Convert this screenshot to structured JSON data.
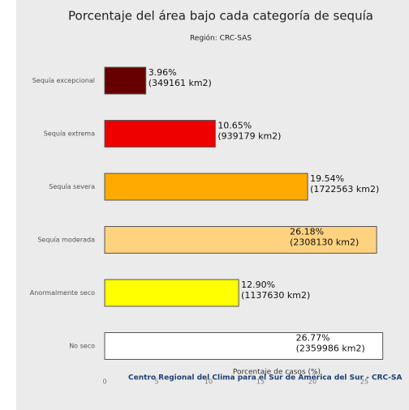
{
  "chart_data": {
    "type": "barh",
    "title": "Porcentaje del área bajo cada categoría de sequía",
    "subtitle": "Región: CRC-SAS",
    "x_label": "Porcentaje de casos (%)",
    "footer": "Centro Regional del Clima para el Sur de América del Sur - CRC-SA",
    "categories": [
      "Sequía excepcional",
      "Sequía extrema",
      "Sequía severa",
      "Sequía moderada",
      "Anormalmente seco",
      "No seco"
    ],
    "values": [
      3.96,
      10.65,
      19.54,
      26.18,
      12.9,
      26.77
    ],
    "value_labels": [
      "3.96%",
      "10.65%",
      "19.54%",
      "26.18%",
      "12.90%",
      "26.77%"
    ],
    "area_labels": [
      "(349161 km2)",
      "(939179 km2)",
      "(1722563 km2)",
      "(2308130 km2)",
      "(1137630 km2)",
      "(2359986 km2)"
    ],
    "colors": [
      "#660000",
      "#ee0000",
      "#ffaa00",
      "#ffd280",
      "#ffff00",
      "#ffffff"
    ],
    "xlim": [
      0,
      30
    ],
    "xticks": [
      0,
      5,
      10,
      15,
      20,
      25
    ]
  }
}
